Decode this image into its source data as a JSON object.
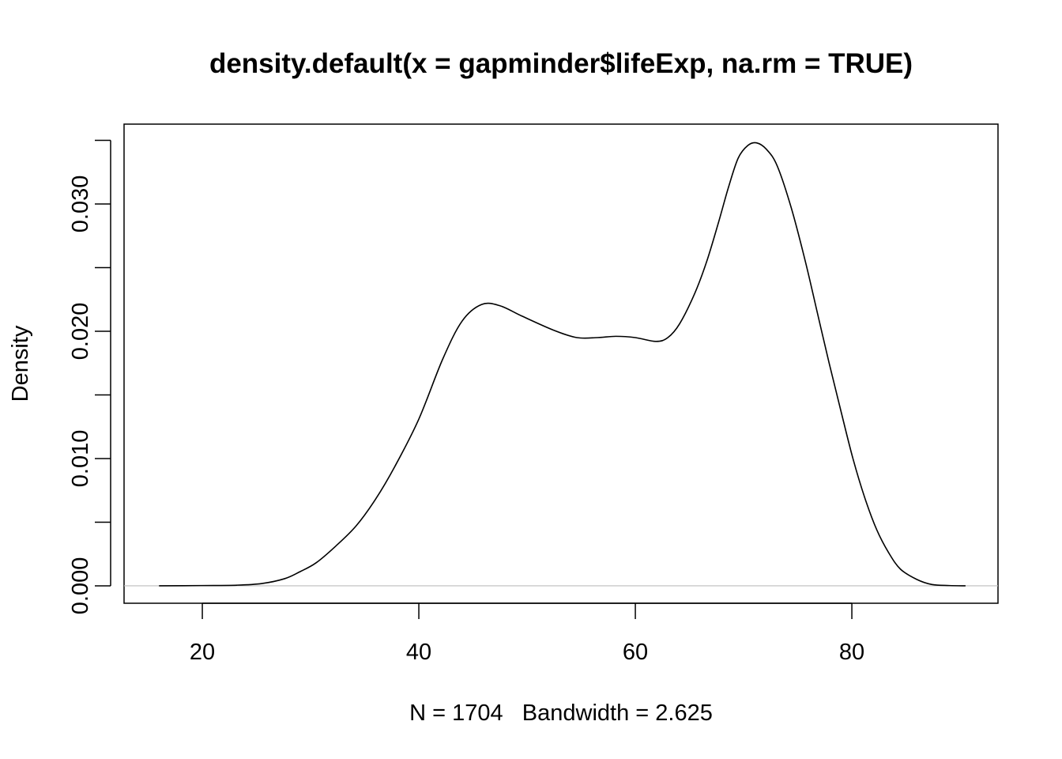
{
  "chart_data": {
    "type": "line",
    "title": "density.default(x = gapminder$lifeExp, na.rm = TRUE)",
    "xlabel": "N = 1704   Bandwidth = 2.625",
    "ylabel": "Density",
    "xlim": [
      12.77,
      93.5
    ],
    "ylim": [
      -0.00137,
      0.03627
    ],
    "x_ticks": [
      20,
      40,
      60,
      80
    ],
    "x_tick_labels": [
      "20",
      "40",
      "60",
      "80"
    ],
    "y_ticks": [
      0,
      0.005,
      0.01,
      0.015,
      0.02,
      0.025,
      0.03,
      0.035
    ],
    "y_tick_labels": [
      "0.000",
      "",
      "0.010",
      "",
      "0.020",
      "",
      "0.030",
      ""
    ],
    "grid": false,
    "zero_line_color": "#bebebe",
    "line_color": "#000000",
    "series": [
      {
        "name": "density",
        "x": [
          16.0,
          20.0,
          23.2,
          25.5,
          27.6,
          29.0,
          30.5,
          32.3,
          34.2,
          36.0,
          37.8,
          40.0,
          42.2,
          44.0,
          45.8,
          47.5,
          49.5,
          52.4,
          54.6,
          56.5,
          58.2,
          60.0,
          61.9,
          63.0,
          64.1,
          65.5,
          66.6,
          67.7,
          68.6,
          69.5,
          70.4,
          71.2,
          72.1,
          73.1,
          74.4,
          75.7,
          76.8,
          77.9,
          79.0,
          80.1,
          81.2,
          82.3,
          83.4,
          84.5,
          86.0,
          87.4,
          89.0,
          90.5
        ],
        "y": [
          0.0,
          2e-05,
          5e-05,
          0.00018,
          0.00056,
          0.0011,
          0.0018,
          0.0031,
          0.0047,
          0.0068,
          0.0094,
          0.0131,
          0.0178,
          0.0208,
          0.0221,
          0.022,
          0.0212,
          0.0201,
          0.0195,
          0.0195,
          0.0196,
          0.0195,
          0.0192,
          0.0195,
          0.0206,
          0.023,
          0.0255,
          0.0286,
          0.0313,
          0.0336,
          0.0346,
          0.0348,
          0.0343,
          0.033,
          0.0297,
          0.0255,
          0.0215,
          0.0175,
          0.0137,
          0.01,
          0.0069,
          0.0044,
          0.0026,
          0.0013,
          0.0005,
          0.0001,
          2e-05,
          0.0
        ]
      }
    ]
  }
}
